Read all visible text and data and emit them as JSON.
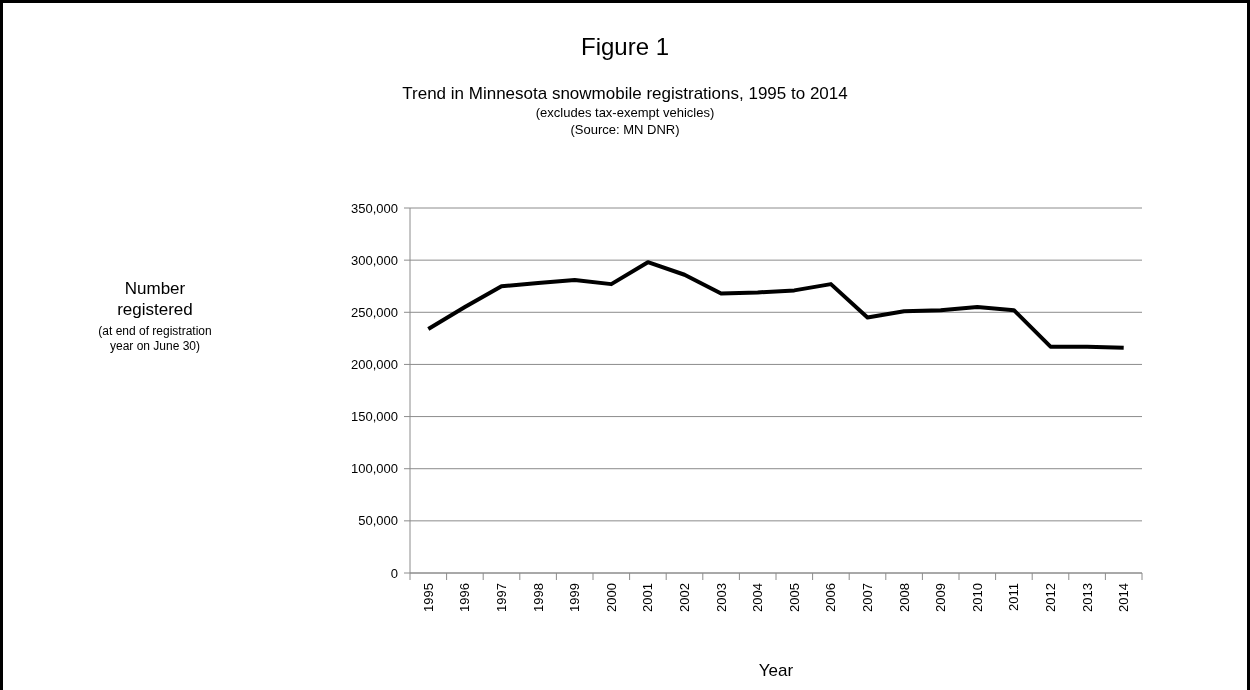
{
  "chart_data": {
    "type": "line",
    "title": "Figure 1",
    "subtitle": "Trend in Minnesota snowmobile registrations, 1995 to 2014",
    "xlabel": "Year",
    "annotations": [
      "(excludes tax-exempt vehicles)",
      "(Source: MN DNR)",
      "(at end of registration year on June 30)",
      "Number registered"
    ],
    "categories": [
      "1995",
      "1996",
      "1997",
      "1998",
      "1999",
      "2000",
      "2001",
      "2002",
      "2003",
      "2004",
      "2005",
      "2006",
      "2007",
      "2008",
      "2009",
      "2010",
      "2011",
      "2012",
      "2013",
      "2014"
    ],
    "series": [
      {
        "color": "#000000",
        "values": [
          234000,
          255000,
          275000,
          278000,
          281000,
          277000,
          298000,
          286000,
          268000,
          269000,
          271000,
          277000,
          245000,
          251000,
          252000,
          255000,
          252000,
          217000,
          217000,
          216000
        ]
      }
    ],
    "ylim": [
      0,
      350000
    ],
    "yticks": [
      {
        "value": 0,
        "label": "0"
      },
      {
        "value": 50000,
        "label": "50,000"
      },
      {
        "value": 100000,
        "label": "100,000"
      },
      {
        "value": 150000,
        "label": "150,000"
      },
      {
        "value": 200000,
        "label": "200,000"
      },
      {
        "value": 250000,
        "label": "250,000"
      },
      {
        "value": 300000,
        "label": "300,000"
      },
      {
        "value": 350000,
        "label": "350,000"
      }
    ],
    "grid": "y",
    "marker": "none",
    "line_style": "solid"
  }
}
